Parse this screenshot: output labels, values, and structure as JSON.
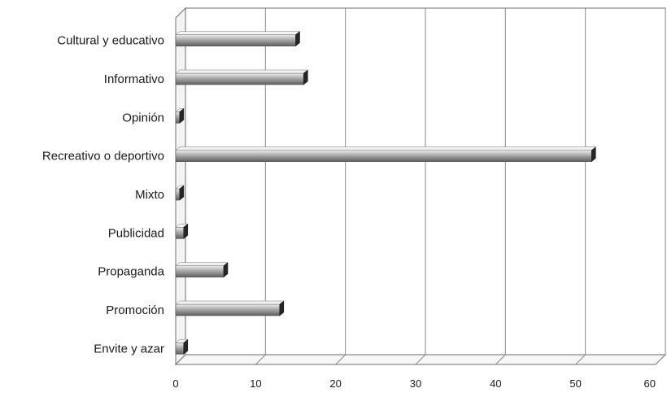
{
  "chart_data": {
    "type": "bar",
    "orientation": "horizontal",
    "categories": [
      "Cultural y educativo",
      "Informativo",
      "Opinión",
      "Recreativo o deportivo",
      "Mixto",
      "Publicidad",
      "Propaganda",
      "Promoción",
      "Envite y azar"
    ],
    "values": [
      15,
      16,
      0.5,
      52,
      0.5,
      1,
      6,
      13,
      1
    ],
    "xlim": [
      0,
      60
    ],
    "xticks": [
      0,
      10,
      20,
      30,
      40,
      50,
      60
    ],
    "grid": true,
    "style": "3d",
    "title": "",
    "xlabel": "",
    "ylabel": "",
    "colors": {
      "bar_top": "#ededed",
      "bar_mid": "#a9a9a9",
      "bar_bottom": "#5e5e5e",
      "bar_end": "#262626",
      "grid": "#8a8a8a",
      "frame": "#6e6e6e"
    }
  }
}
